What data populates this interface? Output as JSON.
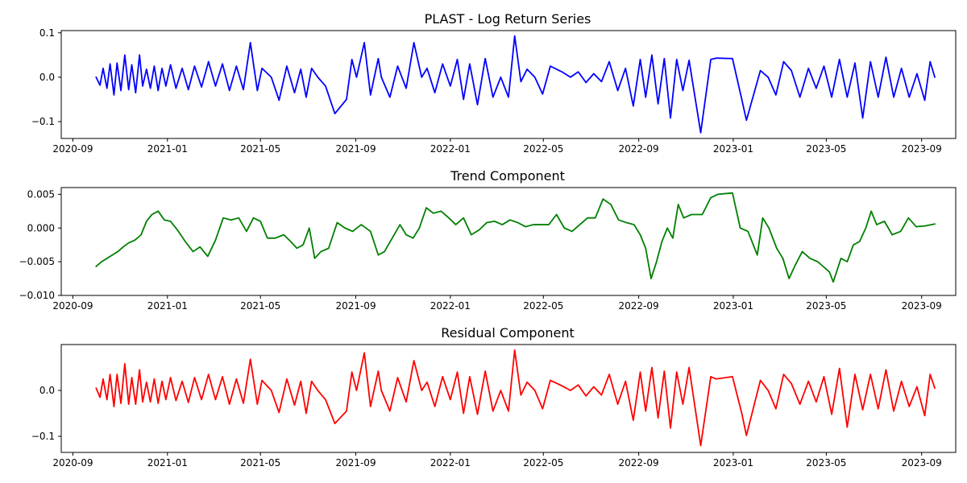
{
  "chart_data": [
    {
      "type": "line",
      "title": "PLAST - Log Return Series",
      "xlabel": "",
      "ylabel": "",
      "color": "#0000ff",
      "x_ticks": [
        "2020-09",
        "2021-01",
        "2021-05",
        "2021-09",
        "2022-01",
        "2022-05",
        "2022-09",
        "2023-01",
        "2023-05",
        "2023-09"
      ],
      "y_ticks": [
        0.1,
        0.0,
        -0.1
      ],
      "y_tick_labels": [
        "0.1",
        "0.0",
        "−0.1"
      ],
      "xlim": [
        "2020-08-17",
        "2023-10-15"
      ],
      "ylim": [
        -0.138,
        0.105
      ],
      "grid": false,
      "series": [
        {
          "x": [
            "2020-10-01",
            "2020-10-06",
            "2020-10-10",
            "2020-10-15",
            "2020-10-19",
            "2020-10-24",
            "2020-10-28",
            "2020-11-02",
            "2020-11-07",
            "2020-11-12",
            "2020-11-16",
            "2020-11-21",
            "2020-11-26",
            "2020-11-30",
            "2020-12-05",
            "2020-12-10",
            "2020-12-15",
            "2020-12-20",
            "2020-12-25",
            "2020-12-30",
            "2021-01-05",
            "2021-01-12",
            "2021-01-20",
            "2021-01-28",
            "2021-02-05",
            "2021-02-14",
            "2021-02-23",
            "2021-03-04",
            "2021-03-13",
            "2021-03-22",
            "2021-03-31",
            "2021-04-09",
            "2021-04-18",
            "2021-04-27",
            "2021-05-03",
            "2021-05-15",
            "2021-05-25",
            "2021-06-04",
            "2021-06-14",
            "2021-06-22",
            "2021-06-29",
            "2021-07-06",
            "2021-07-14",
            "2021-07-24",
            "2021-08-05",
            "2021-08-20",
            "2021-08-27",
            "2021-09-02",
            "2021-09-12",
            "2021-09-20",
            "2021-09-30",
            "2021-10-04",
            "2021-10-15",
            "2021-10-25",
            "2021-11-05",
            "2021-11-15",
            "2021-11-25",
            "2021-12-02",
            "2021-12-12",
            "2021-12-22",
            "2022-01-01",
            "2022-01-10",
            "2022-01-18",
            "2022-01-26",
            "2022-02-05",
            "2022-02-15",
            "2022-02-25",
            "2022-03-07",
            "2022-03-17",
            "2022-03-25",
            "2022-04-02",
            "2022-04-10",
            "2022-04-20",
            "2022-04-30",
            "2022-05-10",
            "2022-05-25",
            "2022-06-05",
            "2022-06-15",
            "2022-06-25",
            "2022-07-05",
            "2022-07-15",
            "2022-07-25",
            "2022-08-05",
            "2022-08-15",
            "2022-08-25",
            "2022-09-03",
            "2022-09-10",
            "2022-09-18",
            "2022-09-26",
            "2022-10-04",
            "2022-10-12",
            "2022-10-20",
            "2022-10-28",
            "2022-11-05",
            "2022-11-20",
            "2022-12-03",
            "2022-12-10",
            "2022-12-31",
            "2023-01-12",
            "2023-01-18",
            "2023-02-05",
            "2023-02-15",
            "2023-02-25",
            "2023-03-07",
            "2023-03-17",
            "2023-03-28",
            "2023-04-08",
            "2023-04-18",
            "2023-04-28",
            "2023-05-08",
            "2023-05-18",
            "2023-05-28",
            "2023-06-07",
            "2023-06-17",
            "2023-06-27",
            "2023-07-07",
            "2023-07-17",
            "2023-07-27",
            "2023-08-06",
            "2023-08-16",
            "2023-08-26",
            "2023-09-05",
            "2023-09-12",
            "2023-09-18"
          ],
          "values": [
            0.0,
            -0.018,
            0.02,
            -0.025,
            0.03,
            -0.04,
            0.032,
            -0.03,
            0.05,
            -0.028,
            0.028,
            -0.035,
            0.05,
            -0.02,
            0.018,
            -0.025,
            0.025,
            -0.03,
            0.02,
            -0.02,
            0.028,
            -0.025,
            0.02,
            -0.028,
            0.025,
            -0.022,
            0.035,
            -0.02,
            0.03,
            -0.03,
            0.025,
            -0.028,
            0.078,
            -0.03,
            0.02,
            0.0,
            -0.052,
            0.025,
            -0.035,
            0.018,
            -0.045,
            0.02,
            0.0,
            -0.02,
            -0.082,
            -0.05,
            0.04,
            0.0,
            0.078,
            -0.04,
            0.042,
            0.0,
            -0.045,
            0.025,
            -0.025,
            0.078,
            0.0,
            0.02,
            -0.035,
            0.03,
            -0.02,
            0.04,
            -0.05,
            0.03,
            -0.062,
            0.042,
            -0.045,
            0.0,
            -0.045,
            0.093,
            -0.01,
            0.018,
            0.0,
            -0.038,
            0.025,
            0.012,
            0.0,
            0.012,
            -0.012,
            0.008,
            -0.01,
            0.035,
            -0.03,
            0.02,
            -0.065,
            0.04,
            -0.045,
            0.05,
            -0.06,
            0.042,
            -0.092,
            0.04,
            -0.03,
            0.038,
            -0.125,
            0.04,
            0.043,
            0.042,
            -0.05,
            -0.097,
            0.015,
            0.0,
            -0.04,
            0.035,
            0.015,
            -0.045,
            0.02,
            -0.025,
            0.025,
            -0.045,
            0.04,
            -0.045,
            0.032,
            -0.092,
            0.035,
            -0.045,
            0.045,
            -0.045,
            0.02,
            -0.045,
            0.008,
            -0.052,
            0.035,
            0.0
          ]
        }
      ]
    },
    {
      "type": "line",
      "title": "Trend Component",
      "xlabel": "",
      "ylabel": "",
      "color": "#008000",
      "x_ticks": [
        "2020-09",
        "2021-01",
        "2021-05",
        "2021-09",
        "2022-01",
        "2022-05",
        "2022-09",
        "2023-01",
        "2023-05",
        "2023-09"
      ],
      "y_ticks": [
        0.005,
        0.0,
        -0.005,
        -0.01
      ],
      "y_tick_labels": [
        "0.005",
        "0.000",
        "−0.005",
        "−0.010"
      ],
      "xlim": [
        "2020-08-17",
        "2023-10-15"
      ],
      "ylim": [
        -0.01,
        0.006
      ],
      "grid": false,
      "series": [
        {
          "x": [
            "2020-10-01",
            "2020-10-08",
            "2020-10-15",
            "2020-10-22",
            "2020-10-29",
            "2020-11-05",
            "2020-11-12",
            "2020-11-20",
            "2020-11-28",
            "2020-12-05",
            "2020-12-12",
            "2020-12-20",
            "2020-12-28",
            "2021-01-05",
            "2021-01-14",
            "2021-01-24",
            "2021-02-03",
            "2021-02-12",
            "2021-02-22",
            "2021-03-04",
            "2021-03-14",
            "2021-03-24",
            "2021-04-03",
            "2021-04-13",
            "2021-04-22",
            "2021-05-01",
            "2021-05-10",
            "2021-05-20",
            "2021-05-31",
            "2021-06-09",
            "2021-06-17",
            "2021-06-25",
            "2021-07-03",
            "2021-07-10",
            "2021-07-18",
            "2021-07-28",
            "2021-08-08",
            "2021-08-18",
            "2021-08-28",
            "2021-09-08",
            "2021-09-20",
            "2021-09-30",
            "2021-10-08",
            "2021-10-18",
            "2021-10-28",
            "2021-11-05",
            "2021-11-14",
            "2021-11-22",
            "2021-12-01",
            "2021-12-10",
            "2021-12-20",
            "2021-12-30",
            "2022-01-08",
            "2022-01-18",
            "2022-01-28",
            "2022-02-07",
            "2022-02-17",
            "2022-02-27",
            "2022-03-09",
            "2022-03-19",
            "2022-03-29",
            "2022-04-08",
            "2022-04-18",
            "2022-04-28",
            "2022-05-08",
            "2022-05-18",
            "2022-05-28",
            "2022-06-07",
            "2022-06-17",
            "2022-06-27",
            "2022-07-07",
            "2022-07-17",
            "2022-07-27",
            "2022-08-06",
            "2022-08-16",
            "2022-08-26",
            "2022-09-03",
            "2022-09-10",
            "2022-09-17",
            "2022-09-24",
            "2022-10-01",
            "2022-10-08",
            "2022-10-15",
            "2022-10-22",
            "2022-10-29",
            "2022-11-08",
            "2022-11-22",
            "2022-12-03",
            "2022-12-12",
            "2022-12-31",
            "2023-01-10",
            "2023-01-20",
            "2023-02-01",
            "2023-02-08",
            "2023-02-16",
            "2023-02-26",
            "2023-03-06",
            "2023-03-14",
            "2023-03-22",
            "2023-03-31",
            "2023-04-10",
            "2023-04-20",
            "2023-04-30",
            "2023-05-05",
            "2023-05-10",
            "2023-05-20",
            "2023-05-28",
            "2023-06-05",
            "2023-06-13",
            "2023-06-21",
            "2023-06-28",
            "2023-07-05",
            "2023-07-15",
            "2023-07-25",
            "2023-08-05",
            "2023-08-15",
            "2023-08-25",
            "2023-09-05",
            "2023-09-18"
          ],
          "values": [
            -0.0057,
            -0.005,
            -0.0045,
            -0.004,
            -0.0035,
            -0.0028,
            -0.0022,
            -0.0018,
            -0.001,
            0.001,
            0.002,
            0.0025,
            0.0012,
            0.001,
            -0.0003,
            -0.002,
            -0.0035,
            -0.0028,
            -0.0042,
            -0.0018,
            0.0015,
            0.0012,
            0.0015,
            -0.0005,
            0.0015,
            0.001,
            -0.0015,
            -0.0015,
            -0.001,
            -0.002,
            -0.003,
            -0.0025,
            0.0,
            -0.0045,
            -0.0035,
            -0.003,
            0.0008,
            0.0,
            -0.0005,
            0.0005,
            -0.0005,
            -0.004,
            -0.0035,
            -0.0015,
            0.0005,
            -0.001,
            -0.0015,
            0.0,
            0.003,
            0.0022,
            0.0025,
            0.0015,
            0.0005,
            0.0015,
            -0.001,
            -0.0003,
            0.0008,
            0.001,
            0.0005,
            0.0012,
            0.0008,
            0.0002,
            0.0005,
            0.0005,
            0.0005,
            0.002,
            0.0,
            -0.0005,
            0.0005,
            0.0015,
            0.0015,
            0.0043,
            0.0035,
            0.0012,
            0.0008,
            0.0005,
            -0.001,
            -0.003,
            -0.0075,
            -0.005,
            -0.002,
            0.0,
            -0.0015,
            0.0035,
            0.0015,
            0.002,
            0.002,
            0.0045,
            0.005,
            0.0052,
            0.0,
            -0.0005,
            -0.004,
            0.0015,
            0.0,
            -0.003,
            -0.0045,
            -0.0075,
            -0.0055,
            -0.0035,
            -0.0045,
            -0.005,
            -0.006,
            -0.0065,
            -0.008,
            -0.0045,
            -0.005,
            -0.0025,
            -0.002,
            0.0,
            0.0025,
            0.0005,
            0.001,
            -0.001,
            -0.0005,
            0.0015,
            0.0002,
            0.0003,
            0.0006
          ]
        }
      ]
    },
    {
      "type": "line",
      "title": "Residual Component",
      "xlabel": "",
      "ylabel": "",
      "color": "#ff0000",
      "x_ticks": [
        "2020-09",
        "2021-01",
        "2021-05",
        "2021-09",
        "2022-01",
        "2022-05",
        "2022-09",
        "2023-01",
        "2023-05",
        "2023-09"
      ],
      "y_ticks": [
        0.0,
        -0.1
      ],
      "y_tick_labels": [
        "0.0",
        "−0.1"
      ],
      "xlim": [
        "2020-08-17",
        "2023-10-15"
      ],
      "ylim": [
        -0.135,
        0.1
      ],
      "grid": false,
      "series": [
        {
          "x": [
            "2020-10-01",
            "2020-10-06",
            "2020-10-10",
            "2020-10-15",
            "2020-10-19",
            "2020-10-24",
            "2020-10-28",
            "2020-11-02",
            "2020-11-07",
            "2020-11-12",
            "2020-11-16",
            "2020-11-21",
            "2020-11-26",
            "2020-11-30",
            "2020-12-05",
            "2020-12-10",
            "2020-12-15",
            "2020-12-20",
            "2020-12-25",
            "2020-12-30",
            "2021-01-05",
            "2021-01-12",
            "2021-01-20",
            "2021-01-28",
            "2021-02-05",
            "2021-02-14",
            "2021-02-23",
            "2021-03-04",
            "2021-03-13",
            "2021-03-22",
            "2021-03-31",
            "2021-04-09",
            "2021-04-18",
            "2021-04-27",
            "2021-05-03",
            "2021-05-15",
            "2021-05-25",
            "2021-06-04",
            "2021-06-14",
            "2021-06-22",
            "2021-06-29",
            "2021-07-06",
            "2021-07-14",
            "2021-07-24",
            "2021-08-05",
            "2021-08-20",
            "2021-08-27",
            "2021-09-02",
            "2021-09-12",
            "2021-09-20",
            "2021-09-30",
            "2021-10-04",
            "2021-10-15",
            "2021-10-25",
            "2021-11-05",
            "2021-11-15",
            "2021-11-25",
            "2021-12-02",
            "2021-12-12",
            "2021-12-22",
            "2022-01-01",
            "2022-01-10",
            "2022-01-18",
            "2022-01-26",
            "2022-02-05",
            "2022-02-15",
            "2022-02-25",
            "2022-03-07",
            "2022-03-17",
            "2022-03-25",
            "2022-04-02",
            "2022-04-10",
            "2022-04-20",
            "2022-04-30",
            "2022-05-10",
            "2022-05-25",
            "2022-06-05",
            "2022-06-15",
            "2022-06-25",
            "2022-07-05",
            "2022-07-15",
            "2022-07-25",
            "2022-08-05",
            "2022-08-15",
            "2022-08-25",
            "2022-09-03",
            "2022-09-10",
            "2022-09-18",
            "2022-09-26",
            "2022-10-04",
            "2022-10-12",
            "2022-10-20",
            "2022-10-28",
            "2022-11-05",
            "2022-11-20",
            "2022-12-03",
            "2022-12-10",
            "2022-12-31",
            "2023-01-12",
            "2023-01-18",
            "2023-02-05",
            "2023-02-15",
            "2023-02-25",
            "2023-03-07",
            "2023-03-17",
            "2023-03-28",
            "2023-04-08",
            "2023-04-18",
            "2023-04-28",
            "2023-05-08",
            "2023-05-18",
            "2023-05-28",
            "2023-06-07",
            "2023-06-17",
            "2023-06-27",
            "2023-07-07",
            "2023-07-17",
            "2023-07-27",
            "2023-08-06",
            "2023-08-16",
            "2023-08-26",
            "2023-09-05",
            "2023-09-12",
            "2023-09-18"
          ],
          "values": [
            0.005,
            -0.015,
            0.025,
            -0.02,
            0.035,
            -0.035,
            0.035,
            -0.028,
            0.058,
            -0.03,
            0.028,
            -0.03,
            0.045,
            -0.025,
            0.018,
            -0.025,
            0.025,
            -0.028,
            0.02,
            -0.02,
            0.028,
            -0.022,
            0.02,
            -0.026,
            0.028,
            -0.02,
            0.035,
            -0.02,
            0.03,
            -0.03,
            0.025,
            -0.028,
            0.068,
            -0.03,
            0.022,
            0.0,
            -0.048,
            0.025,
            -0.032,
            0.02,
            -0.05,
            0.02,
            0.0,
            -0.02,
            -0.072,
            -0.045,
            0.04,
            0.0,
            0.082,
            -0.035,
            0.042,
            0.0,
            -0.045,
            0.028,
            -0.025,
            0.065,
            0.0,
            0.018,
            -0.035,
            0.03,
            -0.02,
            0.04,
            -0.05,
            0.03,
            -0.052,
            0.042,
            -0.045,
            0.0,
            -0.045,
            0.088,
            -0.01,
            0.018,
            0.0,
            -0.04,
            0.022,
            0.01,
            0.0,
            0.012,
            -0.012,
            0.008,
            -0.01,
            0.035,
            -0.03,
            0.02,
            -0.065,
            0.04,
            -0.045,
            0.05,
            -0.06,
            0.042,
            -0.082,
            0.04,
            -0.03,
            0.05,
            -0.12,
            0.03,
            0.025,
            0.03,
            -0.05,
            -0.098,
            0.022,
            0.0,
            -0.04,
            0.035,
            0.015,
            -0.03,
            0.02,
            -0.025,
            0.03,
            -0.052,
            0.048,
            -0.08,
            0.035,
            -0.042,
            0.035,
            -0.04,
            0.045,
            -0.045,
            0.02,
            -0.035,
            0.008,
            -0.055,
            0.035,
            0.005
          ]
        }
      ]
    }
  ]
}
